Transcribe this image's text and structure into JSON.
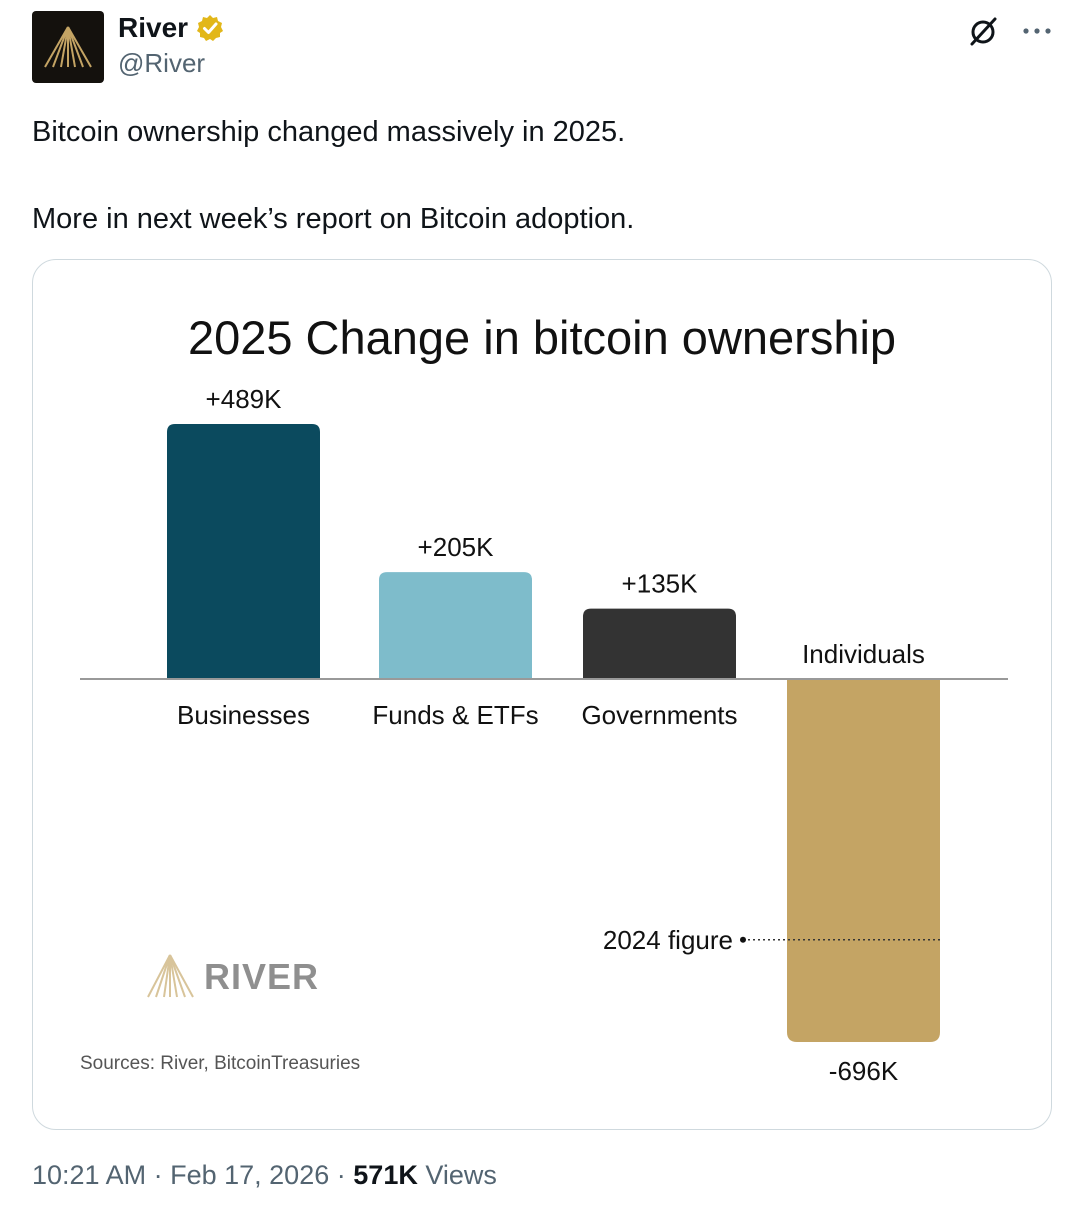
{
  "account": {
    "name": "River",
    "handle": "@River",
    "verified_badge_icon": "verified-badge-icon",
    "brand_color": "#c4a464"
  },
  "tweet": {
    "line1": "Bitcoin ownership changed massively in 2025.",
    "line2": "More in next week’s report on Bitcoin adoption."
  },
  "chart_data": {
    "type": "bar",
    "title": "2025 Change in bitcoin ownership",
    "categories": [
      "Businesses",
      "Funds & ETFs",
      "Governments",
      "Individuals"
    ],
    "values": [
      489,
      205,
      135,
      -696
    ],
    "value_labels": [
      "+489K",
      "+205K",
      "+135K",
      "-696K"
    ],
    "unit": "K BTC",
    "colors": [
      "#0b4a5e",
      "#7ebccb",
      "#333333",
      "#c4a464"
    ],
    "annotation": {
      "text": "2024 figure",
      "category": "Individuals",
      "value": -500
    },
    "watermark": "RIVER",
    "source": "Sources: River, BitcoinTreasuries"
  },
  "meta": {
    "time": "10:21 AM",
    "date": "Feb 17, 2026",
    "views_count": "571K",
    "views_label": "Views"
  }
}
